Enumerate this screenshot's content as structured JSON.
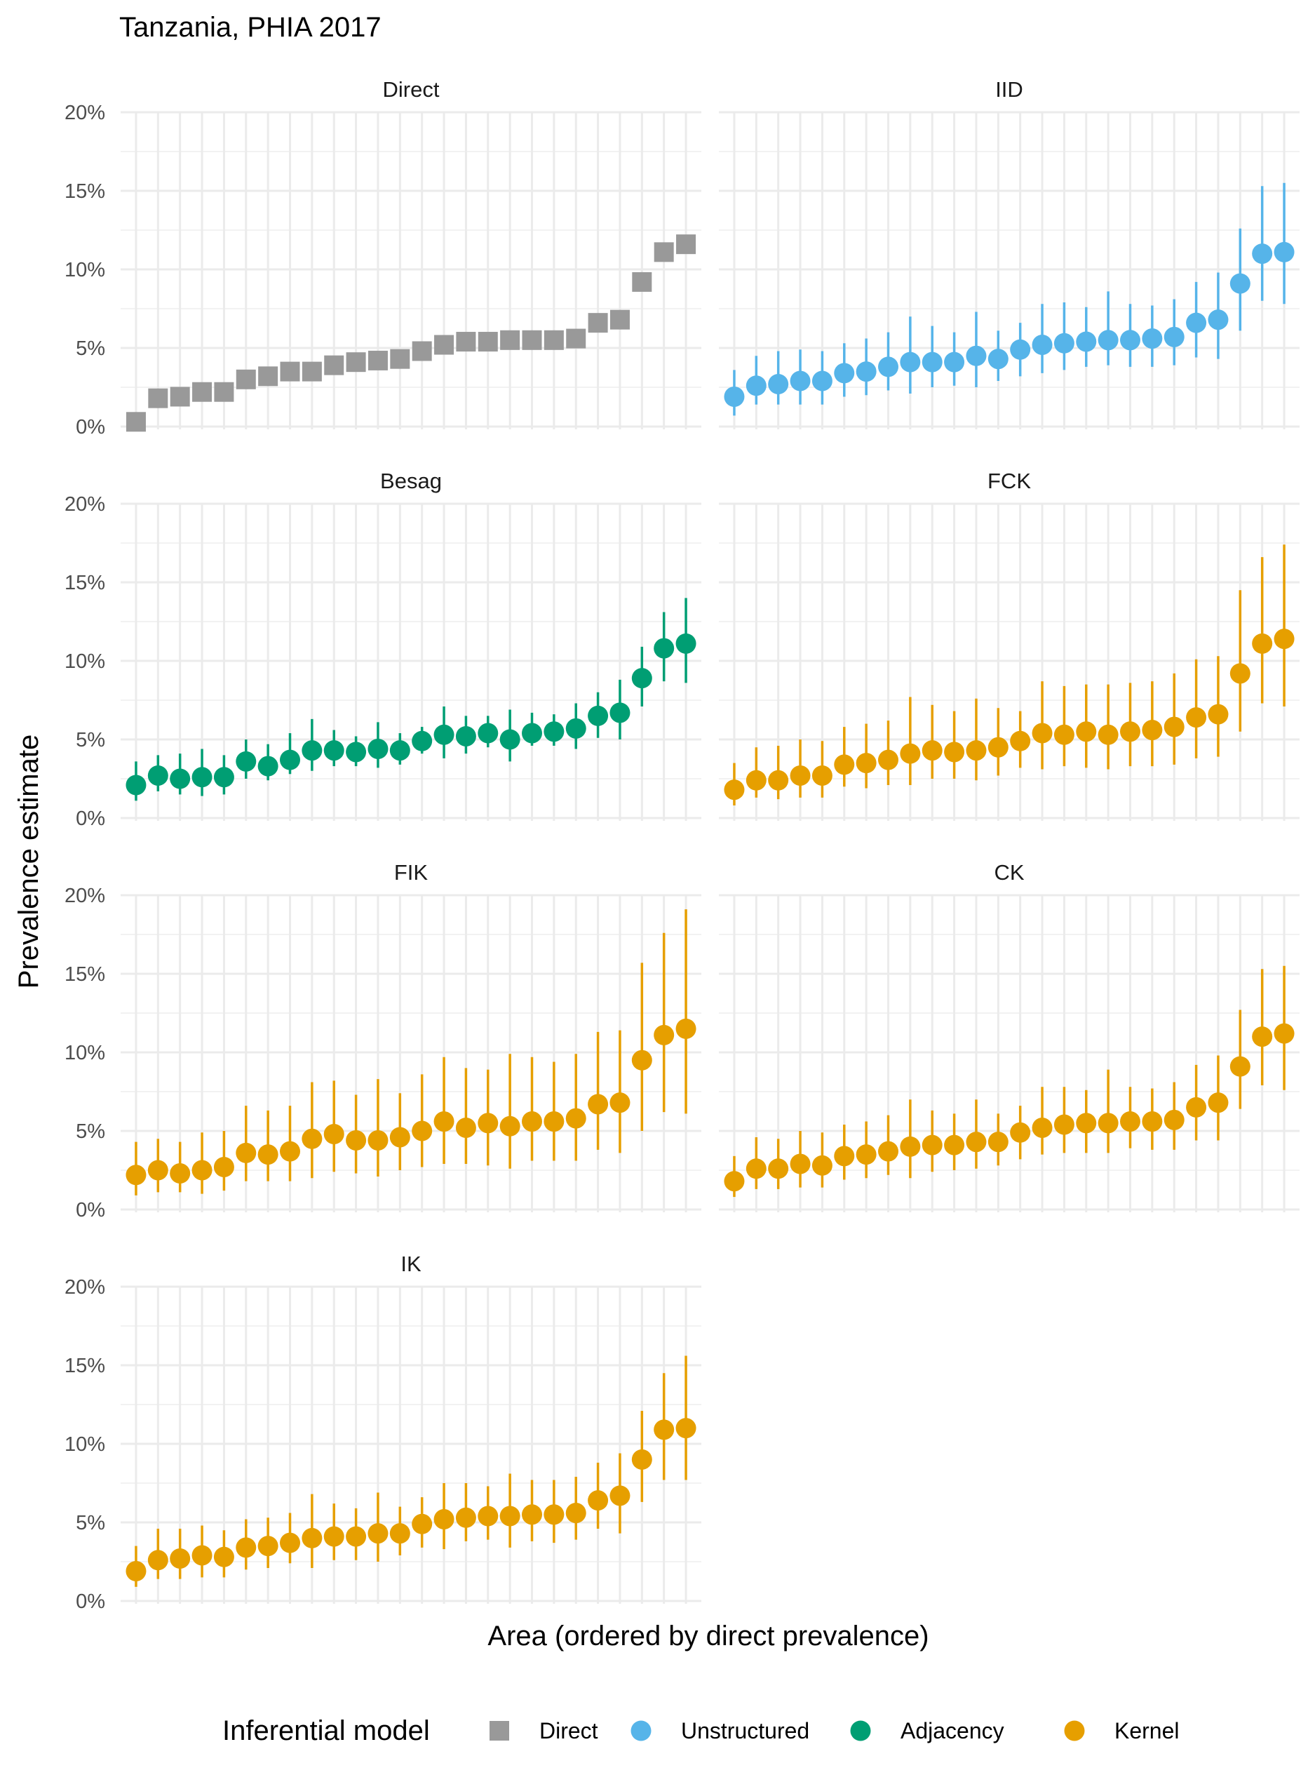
{
  "chart_data": {
    "type": "scatter",
    "title": "Tanzania, PHIA 2017",
    "xlabel": "Area (ordered by direct prevalence)",
    "ylabel": "Prevalence estimate",
    "ylim": [
      0,
      20
    ],
    "y_ticks": [
      "0%",
      "5%",
      "10%",
      "15%",
      "20%"
    ],
    "n_areas": 26,
    "grid": true,
    "legend": {
      "title": "Inferential model",
      "position": "bottom",
      "entries": [
        {
          "label": "Direct",
          "color": "#999999",
          "shape": "square"
        },
        {
          "label": "Unstructured",
          "color": "#56B4E9",
          "shape": "circle"
        },
        {
          "label": "Adjacency",
          "color": "#009E73",
          "shape": "circle"
        },
        {
          "label": "Kernel",
          "color": "#E69F00",
          "shape": "circle"
        }
      ]
    },
    "panels": [
      {
        "name": "Direct",
        "model": "Direct",
        "color": "#999999",
        "shape": "square",
        "x": [
          1,
          2,
          3,
          4,
          5,
          6,
          7,
          8,
          9,
          10,
          11,
          12,
          13,
          14,
          15,
          16,
          17,
          18,
          19,
          20,
          21,
          22,
          23,
          24,
          25,
          26
        ],
        "values": [
          0.3,
          1.8,
          1.9,
          2.2,
          2.2,
          3.0,
          3.2,
          3.5,
          3.5,
          3.9,
          4.1,
          4.2,
          4.3,
          4.8,
          5.2,
          5.4,
          5.4,
          5.5,
          5.5,
          5.5,
          5.6,
          6.6,
          6.8,
          9.2,
          11.1,
          11.6
        ],
        "lower": null,
        "upper": null
      },
      {
        "name": "IID",
        "model": "Unstructured",
        "color": "#56B4E9",
        "shape": "circle",
        "x": [
          1,
          2,
          3,
          4,
          5,
          6,
          7,
          8,
          9,
          10,
          11,
          12,
          13,
          14,
          15,
          16,
          17,
          18,
          19,
          20,
          21,
          22,
          23,
          24,
          25,
          26
        ],
        "values": [
          1.9,
          2.6,
          2.7,
          2.9,
          2.9,
          3.4,
          3.5,
          3.8,
          4.1,
          4.1,
          4.1,
          4.5,
          4.3,
          4.9,
          5.2,
          5.3,
          5.4,
          5.5,
          5.5,
          5.6,
          5.7,
          6.6,
          6.8,
          9.1,
          11.0,
          11.1
        ],
        "lower": [
          0.7,
          1.4,
          1.4,
          1.4,
          1.4,
          1.9,
          2.0,
          2.3,
          2.1,
          2.5,
          2.6,
          2.5,
          2.9,
          3.2,
          3.4,
          3.6,
          3.8,
          3.9,
          3.8,
          3.8,
          3.9,
          4.4,
          4.3,
          6.1,
          8.0,
          7.8
        ],
        "upper": [
          3.6,
          4.5,
          4.8,
          4.9,
          4.8,
          5.3,
          5.6,
          6.0,
          7.0,
          6.4,
          6.0,
          7.3,
          6.1,
          6.6,
          7.8,
          7.9,
          7.6,
          8.6,
          7.8,
          7.7,
          8.1,
          9.2,
          9.8,
          12.6,
          15.3,
          15.5
        ]
      },
      {
        "name": "Besag",
        "model": "Adjacency",
        "color": "#009E73",
        "shape": "circle",
        "x": [
          1,
          2,
          3,
          4,
          5,
          6,
          7,
          8,
          9,
          10,
          11,
          12,
          13,
          14,
          15,
          16,
          17,
          18,
          19,
          20,
          21,
          22,
          23,
          24,
          25,
          26
        ],
        "values": [
          2.1,
          2.7,
          2.5,
          2.6,
          2.6,
          3.6,
          3.3,
          3.7,
          4.3,
          4.3,
          4.2,
          4.4,
          4.3,
          4.9,
          5.3,
          5.2,
          5.4,
          5.0,
          5.4,
          5.5,
          5.7,
          6.5,
          6.7,
          8.9,
          10.8,
          11.1
        ],
        "lower": [
          1.1,
          1.7,
          1.5,
          1.4,
          1.5,
          2.5,
          2.4,
          2.8,
          3.0,
          3.3,
          3.3,
          3.2,
          3.4,
          4.1,
          3.8,
          4.1,
          4.5,
          3.6,
          4.6,
          4.6,
          4.4,
          5.1,
          5.0,
          7.1,
          8.7,
          8.6
        ],
        "upper": [
          3.6,
          4.0,
          4.1,
          4.4,
          4.0,
          5.0,
          4.7,
          5.4,
          6.3,
          5.6,
          5.2,
          6.1,
          5.4,
          5.8,
          7.1,
          6.5,
          6.5,
          6.9,
          6.7,
          6.6,
          7.3,
          8.0,
          8.8,
          10.9,
          13.1,
          14.0
        ]
      },
      {
        "name": "FCK",
        "model": "Kernel",
        "color": "#E69F00",
        "shape": "circle",
        "x": [
          1,
          2,
          3,
          4,
          5,
          6,
          7,
          8,
          9,
          10,
          11,
          12,
          13,
          14,
          15,
          16,
          17,
          18,
          19,
          20,
          21,
          22,
          23,
          24,
          25,
          26
        ],
        "values": [
          1.8,
          2.4,
          2.4,
          2.7,
          2.7,
          3.4,
          3.5,
          3.7,
          4.1,
          4.3,
          4.2,
          4.3,
          4.5,
          4.9,
          5.4,
          5.3,
          5.5,
          5.3,
          5.5,
          5.6,
          5.8,
          6.4,
          6.6,
          9.2,
          11.1,
          11.4
        ],
        "lower": [
          0.8,
          1.3,
          1.2,
          1.3,
          1.3,
          2.0,
          1.9,
          2.1,
          2.1,
          2.5,
          2.5,
          2.4,
          2.7,
          3.2,
          3.1,
          3.3,
          3.2,
          3.1,
          3.3,
          3.3,
          3.4,
          3.8,
          3.9,
          5.5,
          7.3,
          7.1
        ],
        "upper": [
          3.5,
          4.5,
          4.6,
          5.0,
          4.9,
          5.8,
          6.0,
          6.2,
          7.7,
          7.2,
          6.8,
          7.6,
          7.0,
          6.8,
          8.7,
          8.4,
          8.5,
          8.5,
          8.6,
          8.7,
          9.2,
          10.1,
          10.3,
          14.5,
          16.6,
          17.4
        ]
      },
      {
        "name": "FIK",
        "model": "Kernel",
        "color": "#E69F00",
        "shape": "circle",
        "x": [
          1,
          2,
          3,
          4,
          5,
          6,
          7,
          8,
          9,
          10,
          11,
          12,
          13,
          14,
          15,
          16,
          17,
          18,
          19,
          20,
          21,
          22,
          23,
          24,
          25,
          26
        ],
        "values": [
          2.2,
          2.5,
          2.3,
          2.5,
          2.7,
          3.6,
          3.5,
          3.7,
          4.5,
          4.8,
          4.4,
          4.4,
          4.6,
          5.0,
          5.6,
          5.2,
          5.5,
          5.3,
          5.6,
          5.6,
          5.8,
          6.7,
          6.8,
          9.5,
          11.1,
          11.5
        ],
        "lower": [
          0.9,
          1.1,
          1.1,
          1.0,
          1.2,
          1.8,
          1.8,
          1.8,
          2.0,
          2.4,
          2.3,
          2.1,
          2.5,
          2.7,
          2.9,
          2.9,
          2.8,
          2.6,
          3.1,
          3.1,
          3.1,
          3.8,
          3.6,
          5.0,
          6.2,
          6.1
        ],
        "upper": [
          4.3,
          4.5,
          4.3,
          4.9,
          5.0,
          6.6,
          6.3,
          6.6,
          8.1,
          8.2,
          7.3,
          8.3,
          7.4,
          8.6,
          9.7,
          9.0,
          8.9,
          9.9,
          9.7,
          9.4,
          9.9,
          11.3,
          11.4,
          15.7,
          17.6,
          19.1
        ]
      },
      {
        "name": "CK",
        "model": "Kernel",
        "color": "#E69F00",
        "shape": "circle",
        "x": [
          1,
          2,
          3,
          4,
          5,
          6,
          7,
          8,
          9,
          10,
          11,
          12,
          13,
          14,
          15,
          16,
          17,
          18,
          19,
          20,
          21,
          22,
          23,
          24,
          25,
          26
        ],
        "values": [
          1.8,
          2.6,
          2.6,
          2.9,
          2.8,
          3.4,
          3.5,
          3.7,
          4.0,
          4.1,
          4.1,
          4.3,
          4.3,
          4.9,
          5.2,
          5.4,
          5.5,
          5.5,
          5.6,
          5.6,
          5.7,
          6.5,
          6.8,
          9.1,
          11.0,
          11.2
        ],
        "lower": [
          0.8,
          1.3,
          1.3,
          1.4,
          1.4,
          1.9,
          2.0,
          2.2,
          2.0,
          2.4,
          2.5,
          2.6,
          2.8,
          3.2,
          3.5,
          3.6,
          3.6,
          3.6,
          3.9,
          3.8,
          3.8,
          4.4,
          4.4,
          6.4,
          7.9,
          7.6
        ],
        "upper": [
          3.4,
          4.6,
          4.5,
          5.0,
          4.9,
          5.4,
          5.6,
          6.0,
          7.0,
          6.3,
          6.1,
          7.0,
          6.1,
          6.6,
          7.8,
          7.8,
          7.6,
          8.9,
          7.8,
          7.7,
          8.1,
          9.2,
          9.8,
          12.7,
          15.3,
          15.5
        ]
      },
      {
        "name": "IK",
        "model": "Kernel",
        "color": "#E69F00",
        "shape": "circle",
        "x": [
          1,
          2,
          3,
          4,
          5,
          6,
          7,
          8,
          9,
          10,
          11,
          12,
          13,
          14,
          15,
          16,
          17,
          18,
          19,
          20,
          21,
          22,
          23,
          24,
          25,
          26
        ],
        "values": [
          1.9,
          2.6,
          2.7,
          2.9,
          2.8,
          3.4,
          3.5,
          3.7,
          4.0,
          4.1,
          4.1,
          4.3,
          4.3,
          4.9,
          5.2,
          5.3,
          5.4,
          5.4,
          5.5,
          5.5,
          5.6,
          6.4,
          6.7,
          9.0,
          10.9,
          11.0
        ],
        "lower": [
          0.9,
          1.4,
          1.4,
          1.5,
          1.5,
          2.0,
          2.1,
          2.4,
          2.1,
          2.6,
          2.6,
          2.5,
          2.9,
          3.4,
          3.3,
          3.8,
          3.9,
          3.4,
          3.8,
          3.7,
          3.9,
          4.6,
          4.3,
          6.3,
          7.7,
          7.7
        ],
        "upper": [
          3.5,
          4.6,
          4.6,
          4.8,
          4.5,
          5.2,
          5.3,
          5.6,
          6.8,
          6.2,
          5.9,
          6.9,
          6.0,
          6.6,
          7.5,
          7.5,
          7.3,
          8.1,
          7.7,
          7.7,
          7.9,
          8.8,
          9.4,
          12.1,
          14.5,
          15.6
        ]
      }
    ]
  }
}
